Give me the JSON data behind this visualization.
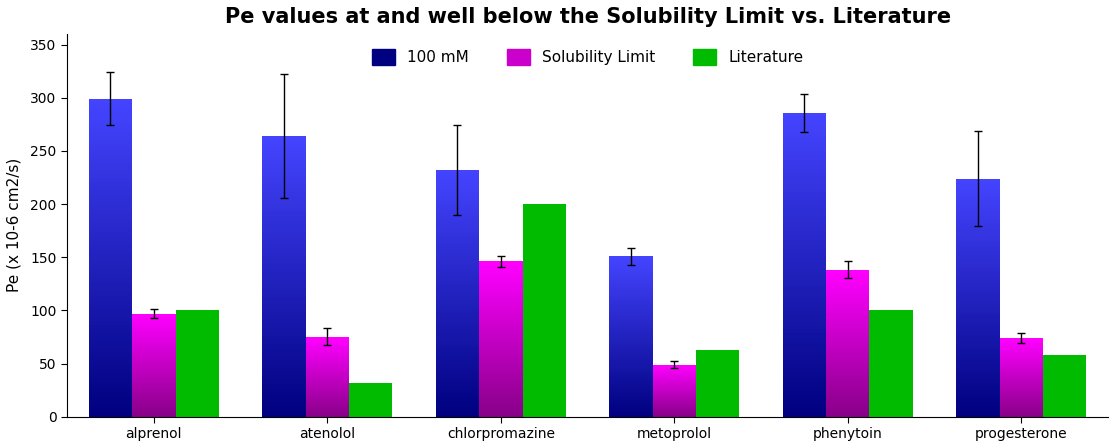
{
  "title": "Pe values at and well below the Solubility Limit vs. Literature",
  "ylabel": "Pe (x 10-6 cm2/s)",
  "categories": [
    "alprenol",
    "atenolol",
    "chlorpromazine",
    "metoprolol",
    "phenytoin",
    "progesterone"
  ],
  "series": {
    "100mM": {
      "values": [
        299,
        264,
        232,
        151,
        286,
        224
      ],
      "errors": [
        25,
        58,
        42,
        8,
        18,
        45
      ],
      "color_bottom": "#000080",
      "color_top": "#4444FF",
      "label": "100 mM"
    },
    "SolubilityLimit": {
      "values": [
        97,
        75,
        146,
        49,
        138,
        74
      ],
      "errors": [
        4,
        8,
        5,
        3,
        8,
        5
      ],
      "color_bottom": "#880088",
      "color_top": "#FF00FF",
      "label": "Solubility Limit"
    },
    "Literature": {
      "values": [
        100,
        32,
        200,
        63,
        100,
        58
      ],
      "color": "#00BB00",
      "label": "Literature"
    }
  },
  "ylim": [
    0,
    360
  ],
  "yticks": [
    0,
    50,
    100,
    150,
    200,
    250,
    300,
    350
  ],
  "bar_width": 0.25,
  "legend_colors": {
    "100mM": "#000080",
    "SolubilityLimit": "#CC00CC",
    "Literature": "#00BB00"
  },
  "background_color": "#ffffff",
  "title_fontsize": 15,
  "label_fontsize": 11
}
